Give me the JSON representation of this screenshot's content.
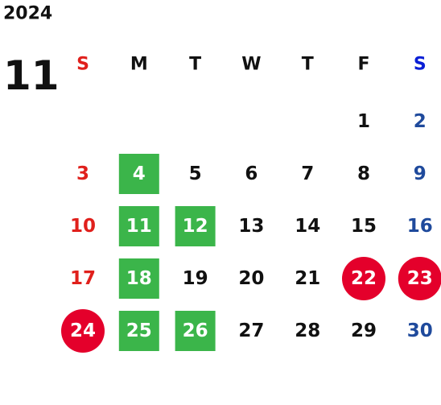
{
  "year": "2024",
  "month": "11",
  "weekdays": [
    "S",
    "M",
    "T",
    "W",
    "T",
    "F",
    "S"
  ],
  "colors": {
    "text": "#111111",
    "sunday": "#e0201c",
    "saturday": "#1f4a9c",
    "saturday_header": "#0a1fd6",
    "green": "#3bb54a",
    "red": "#e4002b",
    "marked_text": "#ffffff"
  },
  "weeks": [
    [
      null,
      null,
      null,
      null,
      null,
      {
        "day": 1
      },
      {
        "day": 2
      }
    ],
    [
      {
        "day": 3
      },
      {
        "day": 4,
        "mark": "green"
      },
      {
        "day": 5
      },
      {
        "day": 6
      },
      {
        "day": 7
      },
      {
        "day": 8
      },
      {
        "day": 9
      }
    ],
    [
      {
        "day": 10
      },
      {
        "day": 11,
        "mark": "green"
      },
      {
        "day": 12,
        "mark": "green"
      },
      {
        "day": 13
      },
      {
        "day": 14
      },
      {
        "day": 15
      },
      {
        "day": 16
      }
    ],
    [
      {
        "day": 17
      },
      {
        "day": 18,
        "mark": "green"
      },
      {
        "day": 19
      },
      {
        "day": 20
      },
      {
        "day": 21
      },
      {
        "day": 22,
        "mark": "red"
      },
      {
        "day": 23,
        "mark": "red"
      }
    ],
    [
      {
        "day": 24,
        "mark": "red"
      },
      {
        "day": 25,
        "mark": "green"
      },
      {
        "day": 26,
        "mark": "green"
      },
      {
        "day": 27
      },
      {
        "day": 28
      },
      {
        "day": 29
      },
      {
        "day": 30
      }
    ]
  ]
}
